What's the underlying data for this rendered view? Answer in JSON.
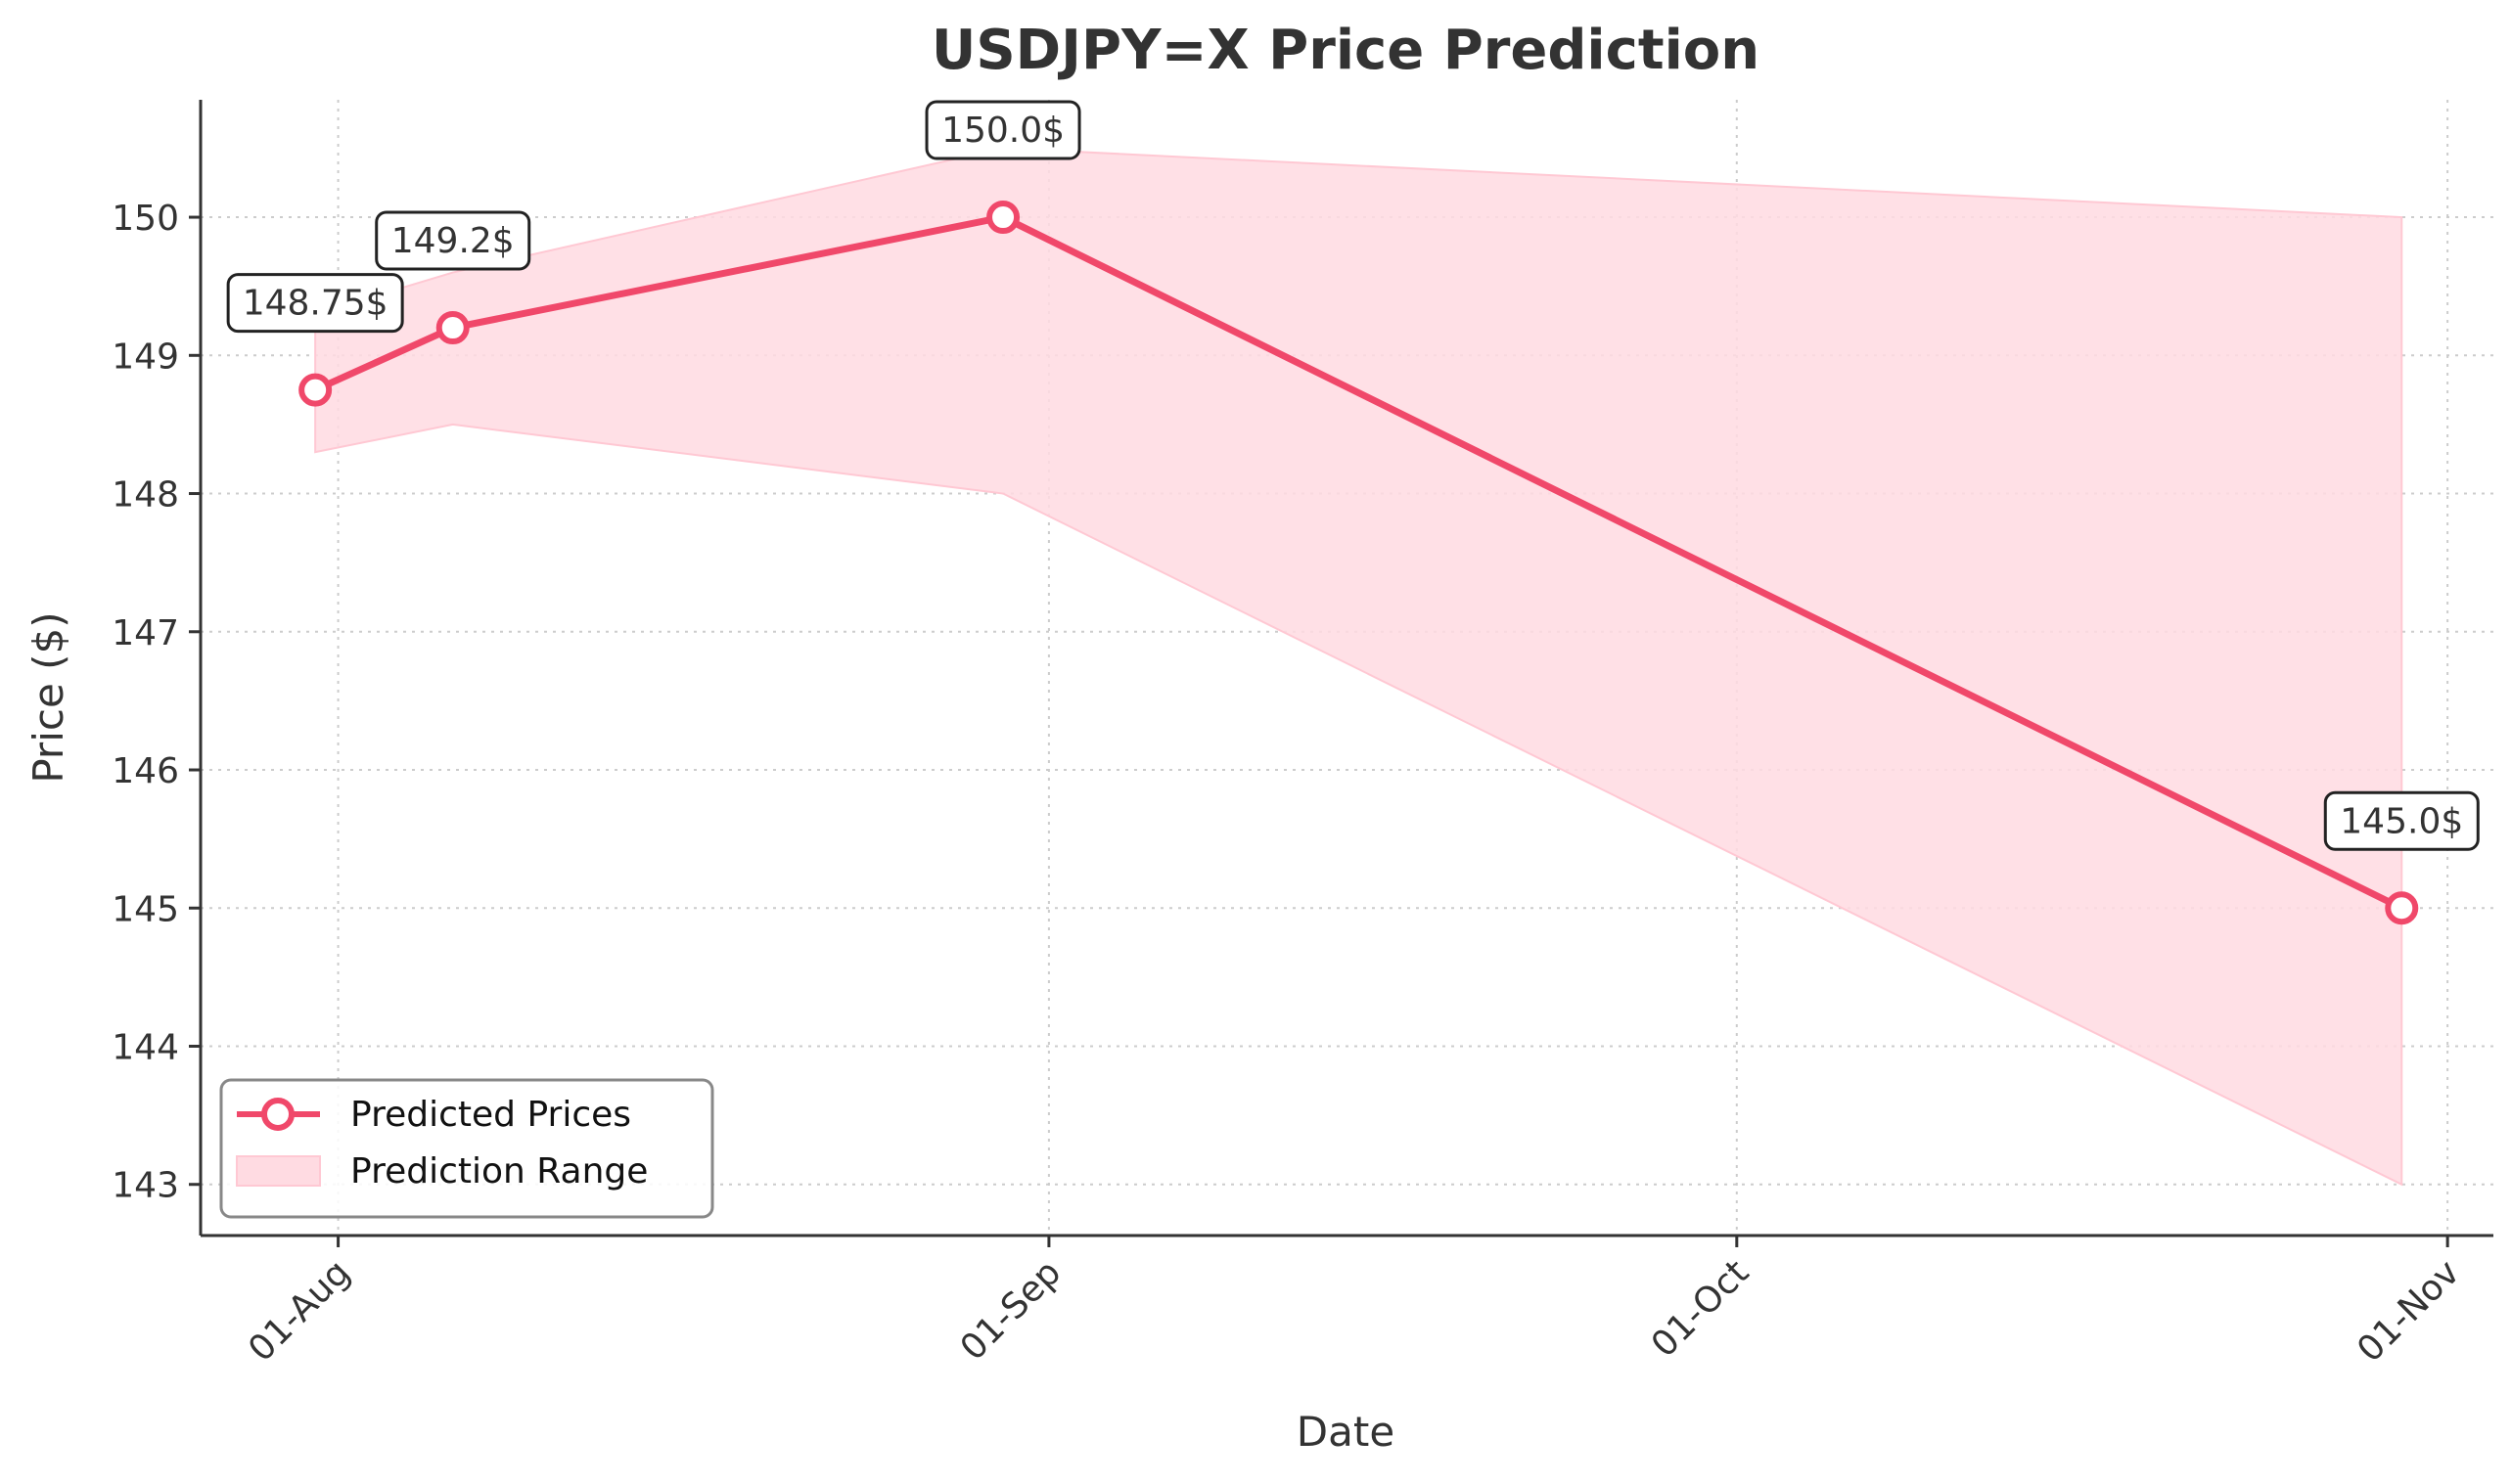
{
  "chart_data": {
    "type": "line",
    "title": "USDJPY=X Price Prediction",
    "xlabel": "Date",
    "ylabel": "Price ($)",
    "x_ticks": [
      {
        "date": "2024-08-01",
        "label": "01-Aug"
      },
      {
        "date": "2024-09-01",
        "label": "01-Sep"
      },
      {
        "date": "2024-10-01",
        "label": "01-Oct"
      },
      {
        "date": "2024-11-01",
        "label": "01-Nov"
      }
    ],
    "y_ticks": [
      143,
      144,
      145,
      146,
      147,
      148,
      149,
      150
    ],
    "xlim": [
      "2024-07-26",
      "2024-11-03"
    ],
    "ylim": [
      142.63,
      150.85
    ],
    "grid": true,
    "legend_position": "lower-left",
    "series": [
      {
        "name": "Predicted Prices",
        "color": "#f0486a",
        "points": [
          {
            "x": "2024-07-31",
            "y": 148.75,
            "label": "148.75$"
          },
          {
            "x": "2024-08-06",
            "y": 149.2,
            "label": "149.2$"
          },
          {
            "x": "2024-08-30",
            "y": 150.0,
            "label": "150.0$"
          },
          {
            "x": "2024-10-30",
            "y": 145.0,
            "label": "145.0$"
          }
        ]
      }
    ],
    "range": {
      "name": "Prediction Range",
      "color": "#ffdbe2",
      "x": [
        "2024-07-31",
        "2024-08-06",
        "2024-08-30",
        "2024-10-30"
      ],
      "upper": [
        149.3,
        149.6,
        150.5,
        150.0
      ],
      "lower": [
        148.3,
        148.5,
        148.0,
        143.0
      ]
    }
  }
}
